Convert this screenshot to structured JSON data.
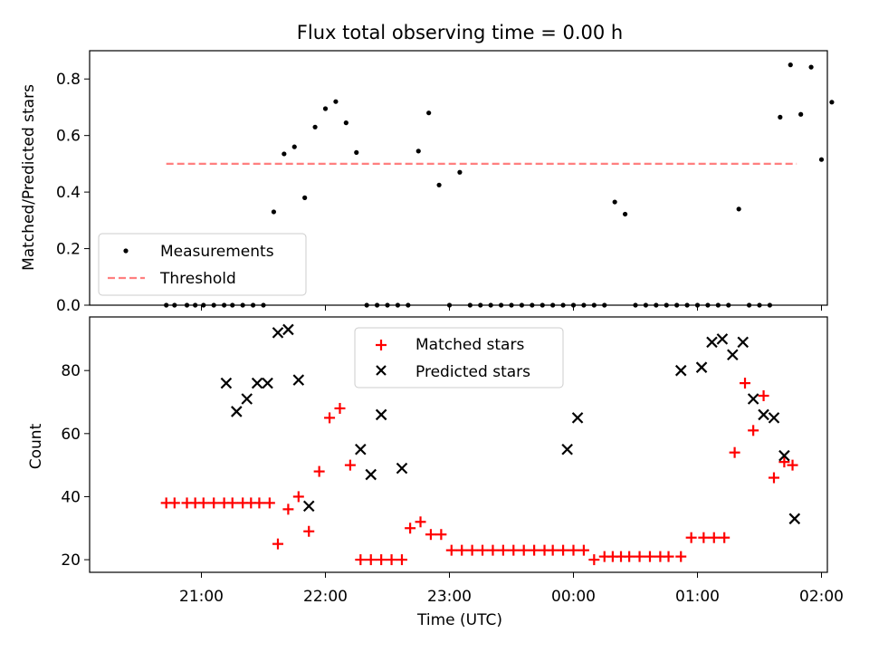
{
  "chart_data": [
    {
      "type": "scatter",
      "title": "Flux total observing time = 0.00 h",
      "xlabel": "",
      "ylabel": "Matched/Predicted stars",
      "ylim": [
        0,
        0.9
      ],
      "yticks": [
        "0.0",
        "0.2",
        "0.4",
        "0.6",
        "0.8"
      ],
      "legend_placement": "lower-left",
      "series": [
        {
          "name": "Measurements",
          "marker": "dot",
          "color": "#000000",
          "x": [
            "20:43",
            "20:47",
            "20:53",
            "20:57",
            "21:01",
            "21:06",
            "21:11",
            "21:15",
            "21:20",
            "21:25",
            "21:30",
            "21:35",
            "21:40",
            "21:45",
            "21:50",
            "21:55",
            "22:00",
            "22:05",
            "22:10",
            "22:15",
            "22:20",
            "22:25",
            "22:30",
            "22:35",
            "22:40",
            "22:45",
            "22:50",
            "22:55",
            "23:00",
            "23:05",
            "23:10",
            "23:15",
            "23:20",
            "23:25",
            "23:30",
            "23:35",
            "23:40",
            "23:45",
            "23:50",
            "23:55",
            "00:00",
            "00:05",
            "00:10",
            "00:15",
            "00:20",
            "00:25",
            "00:30",
            "00:35",
            "00:40",
            "00:45",
            "00:50",
            "00:55",
            "01:00",
            "01:05",
            "01:10",
            "01:15",
            "01:20",
            "01:25",
            "01:30",
            "01:35",
            "01:40",
            "01:45",
            "01:50",
            "01:55",
            "02:00",
            "02:05"
          ],
          "values": [
            0,
            0,
            0,
            0,
            0,
            0,
            0,
            0,
            0,
            0,
            0,
            0.33,
            0.535,
            0.56,
            0.38,
            0.63,
            0.695,
            0.72,
            0.645,
            0.54,
            0,
            0,
            0,
            0,
            0,
            0.545,
            0.68,
            0.425,
            0,
            0.47,
            0,
            0,
            0,
            0,
            0,
            0,
            0,
            0,
            0,
            0,
            0,
            0,
            0,
            0,
            0.365,
            0.322,
            0,
            0,
            0,
            0,
            0,
            0,
            0,
            0,
            0,
            0,
            0.34,
            0,
            0,
            0,
            0.665,
            0.85,
            0.675,
            0.842,
            0.515,
            0.718
          ]
        },
        {
          "name": "Threshold",
          "style": "dashed",
          "color": "#ff7f7f",
          "x": [
            "20:43",
            "01:48"
          ],
          "values": [
            0.5,
            0.5
          ]
        }
      ]
    },
    {
      "type": "scatter",
      "title": "",
      "xlabel": "Time (UTC)",
      "ylabel": "Count",
      "ylim": [
        16,
        97
      ],
      "yticks": [
        "20",
        "40",
        "60",
        "80"
      ],
      "xticks": [
        "21:00",
        "22:00",
        "23:00",
        "00:00",
        "01:00",
        "02:00"
      ],
      "legend_placement": "upper-center",
      "series": [
        {
          "name": "Matched stars",
          "marker": "plus",
          "color": "#ff0000",
          "x": [
            "20:43",
            "20:47",
            "20:53",
            "20:57",
            "21:01",
            "21:06",
            "21:11",
            "21:15",
            "21:20",
            "21:24",
            "21:28",
            "21:33",
            "21:37",
            "21:42",
            "21:47",
            "21:52",
            "21:57",
            "22:02",
            "22:07",
            "22:12",
            "22:17",
            "22:22",
            "22:27",
            "22:32",
            "22:37",
            "22:41",
            "22:46",
            "22:51",
            "22:56",
            "23:01",
            "23:06",
            "23:11",
            "23:16",
            "23:21",
            "23:26",
            "23:31",
            "23:36",
            "23:41",
            "23:46",
            "23:50",
            "23:55",
            "00:00",
            "00:05",
            "00:10",
            "00:15",
            "00:19",
            "00:23",
            "00:27",
            "00:32",
            "00:37",
            "00:42",
            "00:46",
            "00:52",
            "00:57",
            "01:03",
            "01:08",
            "01:13",
            "01:18",
            "01:23",
            "01:27",
            "01:32",
            "01:37",
            "01:42",
            "01:46"
          ],
          "values": [
            38,
            38,
            38,
            38,
            38,
            38,
            38,
            38,
            38,
            38,
            38,
            38,
            25,
            36,
            40,
            29,
            48,
            65,
            68,
            50,
            20,
            20,
            20,
            20,
            20,
            30,
            32,
            28,
            28,
            23,
            23,
            23,
            23,
            23,
            23,
            23,
            23,
            23,
            23,
            23,
            23,
            23,
            23,
            20,
            21,
            21,
            21,
            21,
            21,
            21,
            21,
            21,
            21,
            27,
            27,
            27,
            27,
            54,
            76,
            61,
            72,
            46,
            51,
            50
          ]
        },
        {
          "name": "Predicted stars",
          "marker": "x",
          "color": "#000000",
          "x": [
            "21:12",
            "21:17",
            "21:22",
            "21:27",
            "21:32",
            "21:37",
            "21:42",
            "21:47",
            "21:52",
            "22:17",
            "22:22",
            "22:27",
            "22:37",
            "23:57",
            "00:02",
            "00:52",
            "01:02",
            "01:07",
            "01:12",
            "01:17",
            "01:22",
            "01:27",
            "01:32",
            "01:37",
            "01:42",
            "01:47"
          ],
          "values": [
            76,
            67,
            71,
            76,
            76,
            92,
            93,
            77,
            37,
            55,
            47,
            66,
            49,
            55,
            65,
            80,
            81,
            89,
            90,
            85,
            89,
            71,
            66,
            65,
            53,
            33
          ]
        }
      ]
    }
  ]
}
